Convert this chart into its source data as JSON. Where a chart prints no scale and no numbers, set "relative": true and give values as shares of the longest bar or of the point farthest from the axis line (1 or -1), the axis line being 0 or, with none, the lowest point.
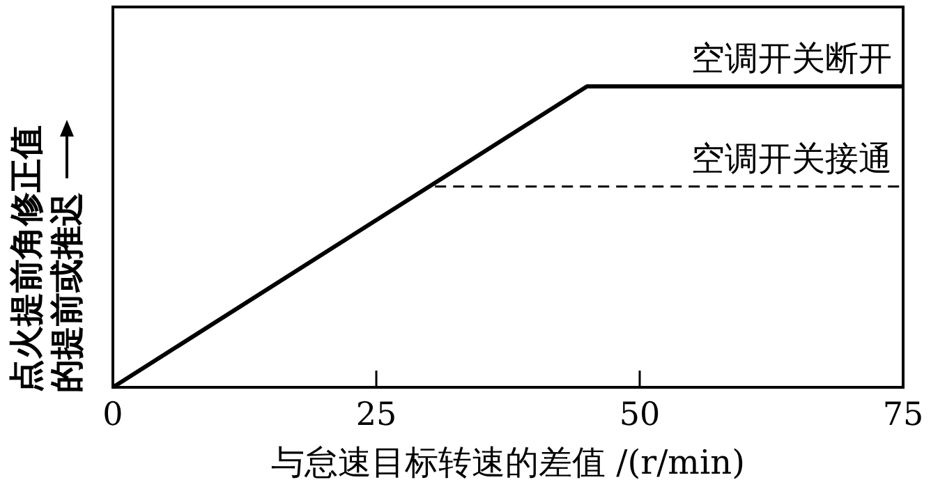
{
  "chart_data": {
    "type": "line",
    "relative": true,
    "xlabel": "与怠速目标转速的差值 /(r/min)",
    "ylabel": "点火提前角修正值的提前或推迟",
    "xlim": [
      0,
      75
    ],
    "xticks": [
      0,
      25,
      50,
      75
    ],
    "grid": false,
    "series": [
      {
        "name": "空调开关断开",
        "color": "#000000",
        "line_style": "solid",
        "x": [
          0,
          45,
          75
        ],
        "values": [
          0,
          1,
          1
        ]
      },
      {
        "name": "空调开关接通",
        "color": "#000000",
        "line_style": "dashed",
        "x": [
          0,
          30,
          75
        ],
        "values": [
          0,
          0.667,
          0.667
        ]
      }
    ]
  }
}
